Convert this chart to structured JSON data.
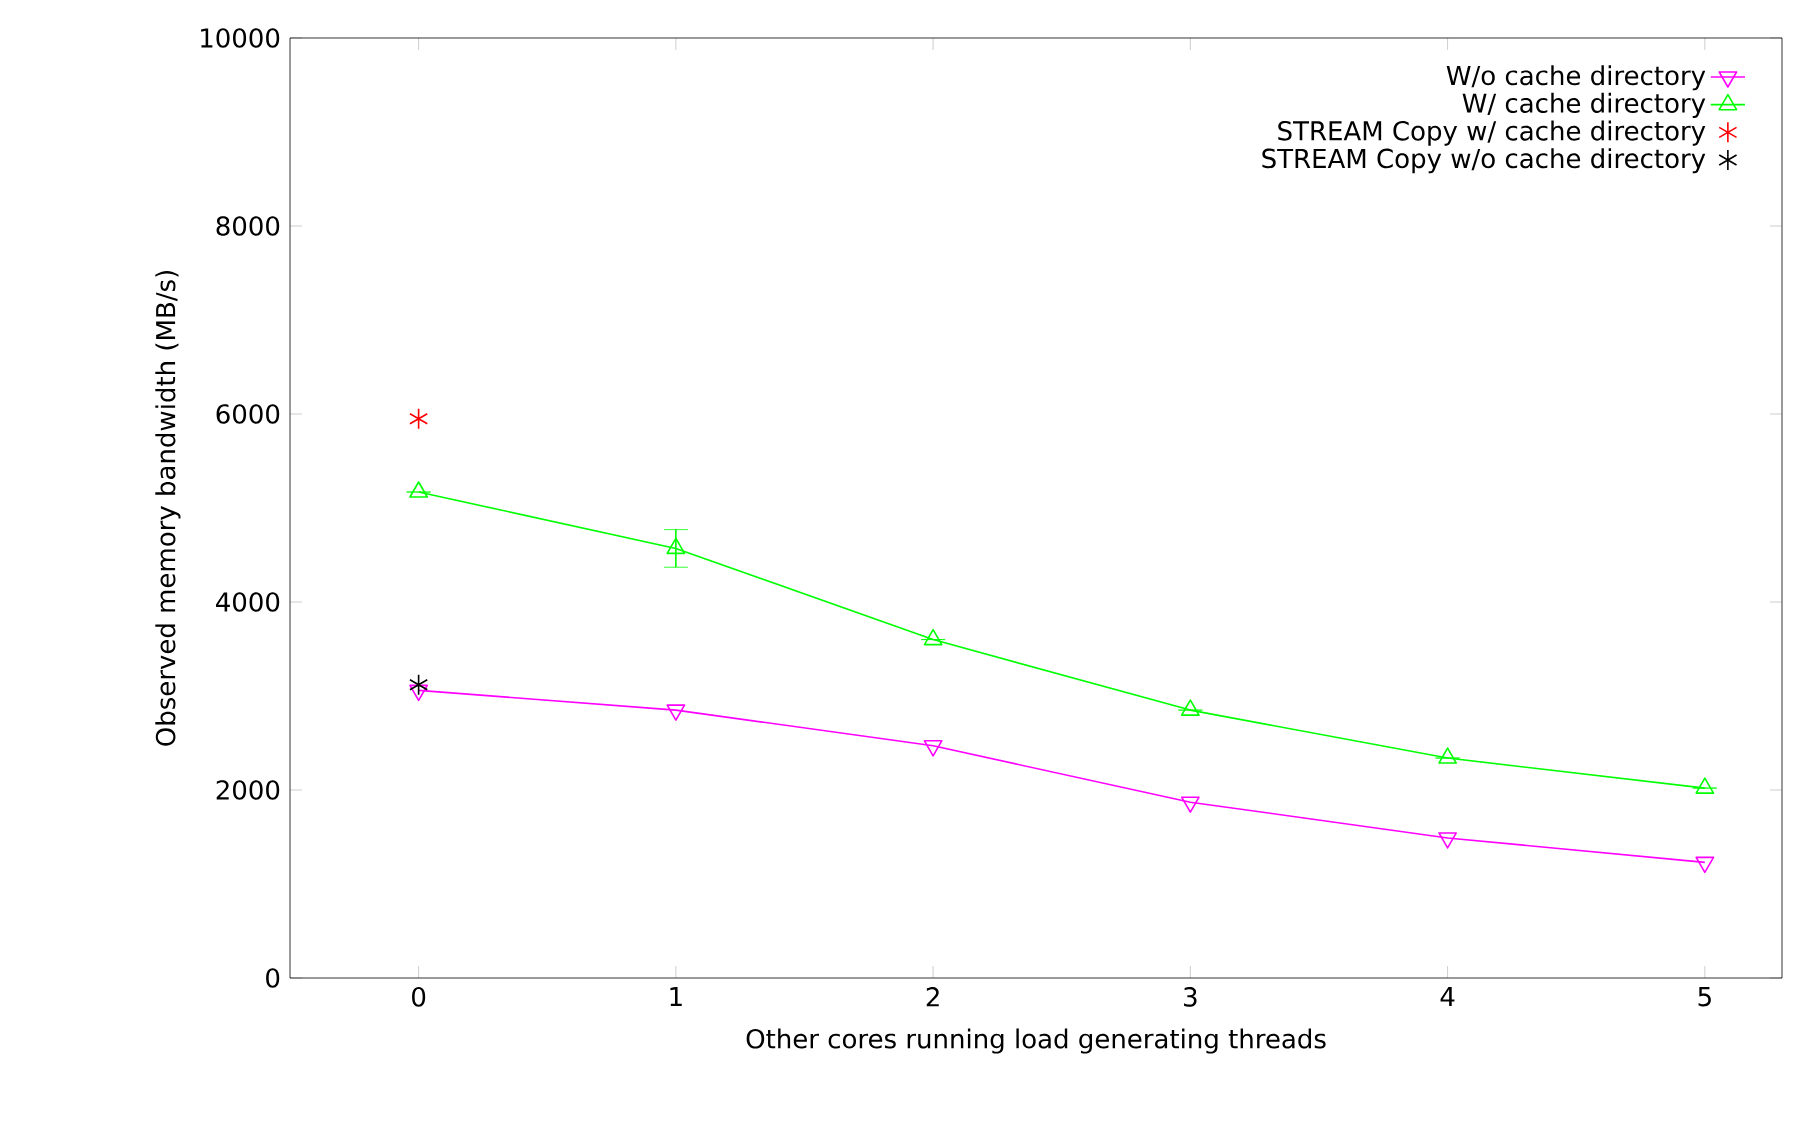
{
  "chart_data": {
    "type": "line",
    "xlabel": "Other cores running load generating threads",
    "ylabel": "Observed memory bandwidth (MB/s)",
    "x": [
      0,
      1,
      2,
      3,
      4,
      5
    ],
    "series": [
      {
        "name": "W/o cache directory",
        "color": "#ff00ff",
        "marker": "triangle-down",
        "values": [
          3060,
          2850,
          2470,
          1870,
          1490,
          1230
        ]
      },
      {
        "name": "W/ cache directory",
        "color": "#00ff00",
        "marker": "triangle",
        "values": [
          5170,
          4570,
          3600,
          2850,
          2340,
          2020
        ],
        "errors": [
          null,
          200,
          null,
          null,
          null,
          null
        ]
      },
      {
        "name": "STREAM Copy w/ cache directory",
        "type": "scatter",
        "color": "#ff0000",
        "marker": "cross",
        "x": [
          0
        ],
        "values": [
          5950
        ]
      },
      {
        "name": "STREAM Copy w/o cache directory",
        "type": "scatter",
        "color": "#000000",
        "marker": "cross",
        "x": [
          0
        ],
        "values": [
          3120
        ]
      }
    ],
    "xlim": [
      -0.5,
      5.3
    ],
    "xticks": [
      0,
      1,
      2,
      3,
      4,
      5
    ],
    "ylim": [
      0,
      10000
    ],
    "yticks": [
      0,
      2000,
      4000,
      6000,
      8000,
      10000
    ],
    "grid": false,
    "legend": "top right"
  }
}
